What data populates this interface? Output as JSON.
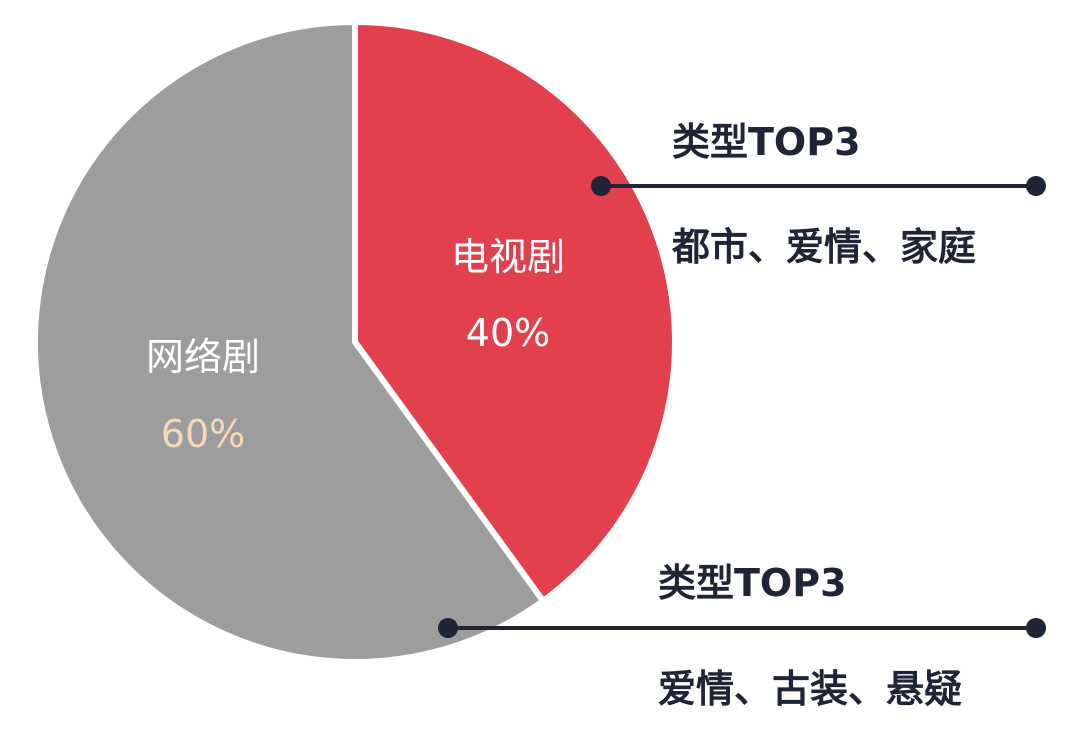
{
  "chart_data": {
    "type": "pie",
    "slices": [
      {
        "label": "电视剧",
        "value": 40,
        "value_label": "40%",
        "color": "#e2404d",
        "label_color": "#ffffff",
        "value_color": "#ffffff"
      },
      {
        "label": "网络剧",
        "value": 60,
        "value_label": "60%",
        "color": "#9e9d9d",
        "label_color": "#ffffff",
        "value_color": "#f3d9b8"
      }
    ],
    "start": "12 o'clock",
    "direction": "clockwise",
    "annotations": [
      {
        "slice": "电视剧",
        "heading": "类型TOP3",
        "detail": "都市、爱情、家庭"
      },
      {
        "slice": "网络剧",
        "heading": "类型TOP3",
        "detail": "爱情、古装、悬疑"
      }
    ],
    "annotation_line_color": "#1f2436"
  }
}
